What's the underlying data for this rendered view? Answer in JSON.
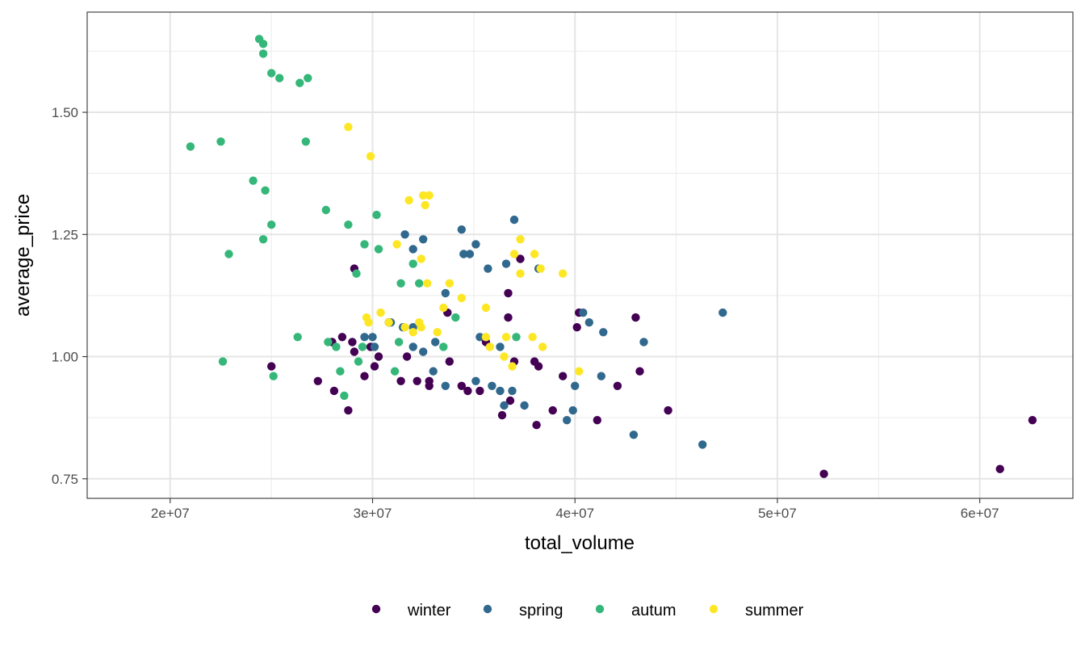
{
  "chart_data": {
    "type": "scatter",
    "title": "",
    "xlabel": "total_volume",
    "ylabel": "average_price",
    "xlim": [
      15900000,
      64600000
    ],
    "ylim": [
      0.71,
      1.705
    ],
    "x_ticks": [
      20000000,
      30000000,
      40000000,
      50000000,
      60000000
    ],
    "x_tick_labels": [
      "2e+07",
      "3e+07",
      "4e+07",
      "5e+07",
      "6e+07"
    ],
    "x_minor": [
      25000000,
      35000000,
      45000000,
      55000000
    ],
    "y_ticks": [
      0.75,
      1.0,
      1.25,
      1.5
    ],
    "y_tick_labels": [
      "0.75",
      "1.00",
      "1.25",
      "1.50"
    ],
    "y_minor": [
      0.875,
      1.125,
      1.375,
      1.625
    ],
    "grid": true,
    "legend_position": "bottom",
    "series": [
      {
        "name": "winter",
        "color": "#440154",
        "points": [
          [
            25000000,
            0.98
          ],
          [
            27300000,
            0.95
          ],
          [
            28000000,
            1.03
          ],
          [
            28100000,
            0.93
          ],
          [
            28500000,
            1.04
          ],
          [
            28800000,
            0.89
          ],
          [
            29000000,
            1.03
          ],
          [
            29100000,
            1.18
          ],
          [
            29100000,
            1.01
          ],
          [
            29600000,
            0.96
          ],
          [
            29900000,
            1.02
          ],
          [
            30100000,
            0.98
          ],
          [
            30300000,
            1.0
          ],
          [
            30800000,
            1.07
          ],
          [
            31400000,
            0.95
          ],
          [
            31700000,
            1.0
          ],
          [
            32200000,
            0.95
          ],
          [
            32800000,
            0.95
          ],
          [
            32800000,
            0.94
          ],
          [
            33700000,
            1.09
          ],
          [
            33800000,
            0.99
          ],
          [
            34400000,
            0.94
          ],
          [
            34700000,
            0.93
          ],
          [
            35300000,
            0.93
          ],
          [
            35600000,
            1.03
          ],
          [
            36400000,
            0.88
          ],
          [
            36700000,
            1.13
          ],
          [
            36700000,
            1.08
          ],
          [
            36800000,
            0.91
          ],
          [
            37000000,
            0.99
          ],
          [
            37300000,
            1.2
          ],
          [
            38000000,
            0.99
          ],
          [
            38100000,
            0.86
          ],
          [
            38200000,
            0.98
          ],
          [
            38900000,
            0.89
          ],
          [
            39400000,
            0.96
          ],
          [
            40100000,
            1.06
          ],
          [
            40200000,
            1.09
          ],
          [
            41100000,
            0.87
          ],
          [
            42100000,
            0.94
          ],
          [
            43000000,
            1.08
          ],
          [
            43200000,
            0.97
          ],
          [
            44600000,
            0.89
          ],
          [
            52300000,
            0.76
          ],
          [
            61000000,
            0.77
          ],
          [
            62600000,
            0.87
          ]
        ]
      },
      {
        "name": "spring",
        "color": "#31688E",
        "points": [
          [
            29600000,
            1.04
          ],
          [
            30000000,
            1.04
          ],
          [
            30100000,
            1.02
          ],
          [
            30900000,
            1.07
          ],
          [
            31500000,
            1.06
          ],
          [
            31600000,
            1.25
          ],
          [
            32000000,
            1.22
          ],
          [
            32000000,
            1.06
          ],
          [
            32000000,
            1.02
          ],
          [
            32500000,
            1.24
          ],
          [
            32500000,
            1.01
          ],
          [
            33000000,
            0.97
          ],
          [
            33100000,
            1.03
          ],
          [
            33600000,
            1.13
          ],
          [
            33600000,
            0.94
          ],
          [
            34400000,
            1.26
          ],
          [
            34500000,
            1.21
          ],
          [
            34800000,
            1.21
          ],
          [
            35100000,
            1.23
          ],
          [
            35100000,
            0.95
          ],
          [
            35300000,
            1.04
          ],
          [
            35700000,
            1.18
          ],
          [
            35900000,
            0.94
          ],
          [
            36300000,
            1.02
          ],
          [
            36300000,
            0.93
          ],
          [
            36600000,
            1.19
          ],
          [
            36500000,
            0.9
          ],
          [
            37000000,
            1.28
          ],
          [
            36900000,
            0.93
          ],
          [
            37500000,
            0.9
          ],
          [
            38200000,
            1.18
          ],
          [
            39600000,
            0.87
          ],
          [
            39900000,
            0.89
          ],
          [
            40000000,
            0.94
          ],
          [
            40400000,
            1.09
          ],
          [
            40700000,
            1.07
          ],
          [
            41300000,
            0.96
          ],
          [
            41400000,
            1.05
          ],
          [
            42900000,
            0.84
          ],
          [
            43400000,
            1.03
          ],
          [
            46300000,
            0.82
          ],
          [
            47300000,
            1.09
          ]
        ]
      },
      {
        "name": "autum",
        "color": "#35B779",
        "points": [
          [
            21000000,
            1.43
          ],
          [
            22500000,
            1.44
          ],
          [
            22600000,
            0.99
          ],
          [
            22900000,
            1.21
          ],
          [
            24100000,
            1.36
          ],
          [
            24400000,
            1.65
          ],
          [
            24600000,
            1.64
          ],
          [
            24600000,
            1.62
          ],
          [
            24700000,
            1.34
          ],
          [
            24600000,
            1.24
          ],
          [
            25000000,
            1.58
          ],
          [
            25000000,
            1.27
          ],
          [
            25100000,
            0.96
          ],
          [
            25400000,
            1.57
          ],
          [
            26300000,
            1.04
          ],
          [
            26400000,
            1.56
          ],
          [
            26700000,
            1.44
          ],
          [
            26800000,
            1.57
          ],
          [
            27700000,
            1.3
          ],
          [
            27800000,
            1.03
          ],
          [
            28200000,
            1.02
          ],
          [
            28400000,
            0.97
          ],
          [
            28600000,
            0.92
          ],
          [
            28800000,
            1.27
          ],
          [
            29200000,
            1.17
          ],
          [
            29300000,
            0.99
          ],
          [
            29500000,
            1.02
          ],
          [
            29600000,
            1.23
          ],
          [
            30200000,
            1.29
          ],
          [
            30300000,
            1.22
          ],
          [
            31100000,
            0.97
          ],
          [
            31300000,
            1.03
          ],
          [
            31400000,
            1.15
          ],
          [
            32000000,
            1.19
          ],
          [
            32300000,
            1.15
          ],
          [
            33500000,
            1.02
          ],
          [
            34100000,
            1.08
          ],
          [
            37100000,
            1.04
          ]
        ]
      },
      {
        "name": "summer",
        "color": "#FDE725",
        "points": [
          [
            28800000,
            1.47
          ],
          [
            29900000,
            1.41
          ],
          [
            29700000,
            1.08
          ],
          [
            29800000,
            1.07
          ],
          [
            30400000,
            1.09
          ],
          [
            30800000,
            1.07
          ],
          [
            31200000,
            1.23
          ],
          [
            31600000,
            1.06
          ],
          [
            31800000,
            1.32
          ],
          [
            32000000,
            1.05
          ],
          [
            32300000,
            1.07
          ],
          [
            32400000,
            1.2
          ],
          [
            32400000,
            1.06
          ],
          [
            32500000,
            1.33
          ],
          [
            32600000,
            1.31
          ],
          [
            32700000,
            1.15
          ],
          [
            32800000,
            1.33
          ],
          [
            33200000,
            1.05
          ],
          [
            33500000,
            1.1
          ],
          [
            33800000,
            1.15
          ],
          [
            34400000,
            1.12
          ],
          [
            35600000,
            1.1
          ],
          [
            35600000,
            1.04
          ],
          [
            35800000,
            1.02
          ],
          [
            36500000,
            1.0
          ],
          [
            36600000,
            1.04
          ],
          [
            37000000,
            1.21
          ],
          [
            36900000,
            0.98
          ],
          [
            37300000,
            1.24
          ],
          [
            37300000,
            1.17
          ],
          [
            37900000,
            1.04
          ],
          [
            38000000,
            1.21
          ],
          [
            38300000,
            1.18
          ],
          [
            38400000,
            1.02
          ],
          [
            39400000,
            1.17
          ],
          [
            40200000,
            0.97
          ]
        ]
      }
    ]
  }
}
